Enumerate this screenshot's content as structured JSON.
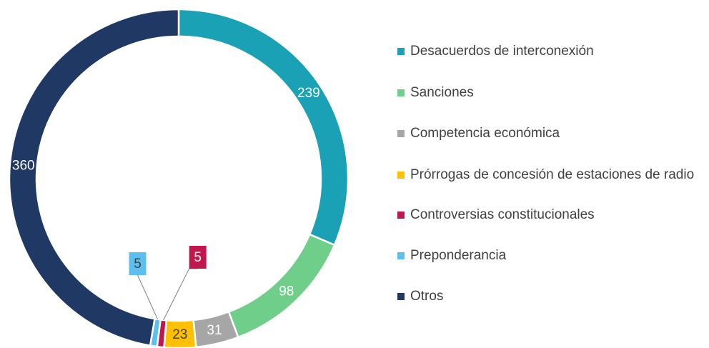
{
  "chart_data": {
    "type": "donut",
    "categories": [
      "Desacuerdos de interconexión",
      "Sanciones",
      "Competencia económica",
      "Prórrogas de concesión de estaciones de radio",
      "Controversias constitucionales",
      "Preponderancia",
      "Otros"
    ],
    "values": [
      239,
      98,
      31,
      23,
      5,
      5,
      360
    ],
    "colors": [
      "#1ba1b5",
      "#6fcf8a",
      "#a6a6a6",
      "#ffc000",
      "#c0174d",
      "#5bc0f0",
      "#203864"
    ],
    "legend": "right"
  }
}
